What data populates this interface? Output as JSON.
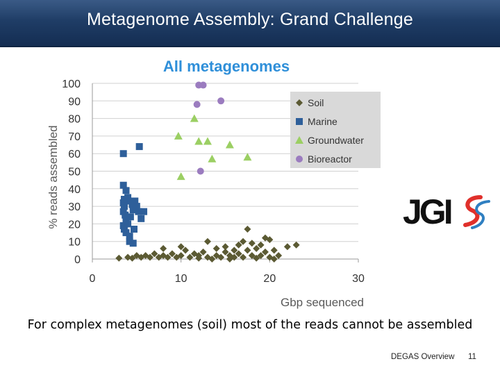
{
  "header": {
    "title": "Metagenome Assembly: Grand Challenge"
  },
  "caption": "For complex metagenomes (soil) most of the reads cannot be assembled",
  "footer": {
    "text": "DEGAS Overview",
    "page": "11"
  },
  "logo": {
    "text": "JGI"
  },
  "colors": {
    "header_bg": "#1f3d66",
    "title_blue": "#2f8fd9",
    "soil": "#5b5a33",
    "marine": "#2e5f9a",
    "groundwater": "#9bcf63",
    "bioreactor": "#9b7cbf",
    "legend_bg": "#d9d9d9",
    "logo_red": "#e0302b",
    "logo_blue": "#2f7fc1"
  },
  "chart_data": {
    "type": "scatter",
    "title": "All metagenomes",
    "xlabel": "Gbp sequenced",
    "ylabel": "% reads assembled",
    "xlim": [
      0,
      30
    ],
    "ylim": [
      0,
      100
    ],
    "xticks": [
      "0",
      "10",
      "20",
      "30"
    ],
    "yticks": [
      "0",
      "10",
      "20",
      "30",
      "40",
      "50",
      "60",
      "70",
      "80",
      "90",
      "100"
    ],
    "grid": "horizontal",
    "legend_position": "top-right",
    "series": [
      {
        "name": "Soil",
        "marker": "diamond",
        "color": "#5b5a33",
        "points": [
          [
            3,
            0.5
          ],
          [
            4,
            1
          ],
          [
            4.5,
            0.5
          ],
          [
            5,
            2
          ],
          [
            5.5,
            1
          ],
          [
            6,
            2
          ],
          [
            6.5,
            1
          ],
          [
            7,
            3
          ],
          [
            7.5,
            1
          ],
          [
            8,
            2
          ],
          [
            8,
            6
          ],
          [
            8.5,
            1
          ],
          [
            9,
            3
          ],
          [
            9.5,
            1
          ],
          [
            10,
            7
          ],
          [
            10,
            2
          ],
          [
            10.5,
            5
          ],
          [
            11,
            1
          ],
          [
            11.5,
            3
          ],
          [
            12,
            0.5
          ],
          [
            12,
            2
          ],
          [
            12.5,
            4
          ],
          [
            13,
            10
          ],
          [
            13,
            1
          ],
          [
            13.5,
            0
          ],
          [
            14,
            2
          ],
          [
            14,
            6
          ],
          [
            14.5,
            1
          ],
          [
            15,
            4
          ],
          [
            15,
            7
          ],
          [
            15.5,
            0
          ],
          [
            15.5,
            2
          ],
          [
            16,
            1
          ],
          [
            16,
            5
          ],
          [
            16.5,
            3
          ],
          [
            16.5,
            8
          ],
          [
            17,
            1
          ],
          [
            17,
            10
          ],
          [
            17.5,
            17
          ],
          [
            17.5,
            5
          ],
          [
            18,
            2
          ],
          [
            18,
            9
          ],
          [
            18.5,
            0.5
          ],
          [
            18.5,
            6
          ],
          [
            19,
            2
          ],
          [
            19,
            8
          ],
          [
            19.5,
            12
          ],
          [
            19.5,
            4
          ],
          [
            20,
            11
          ],
          [
            20,
            1
          ],
          [
            20.5,
            0
          ],
          [
            20.5,
            5
          ],
          [
            21,
            2
          ],
          [
            22,
            7
          ],
          [
            23,
            8
          ]
        ]
      },
      {
        "name": "Marine",
        "marker": "square",
        "color": "#2e5f9a",
        "points": [
          [
            3.5,
            60
          ],
          [
            5.3,
            64
          ],
          [
            3.5,
            42
          ],
          [
            3.8,
            39
          ],
          [
            3.5,
            32
          ],
          [
            3.6,
            30
          ],
          [
            4,
            35
          ],
          [
            4.2,
            33
          ],
          [
            4.5,
            31
          ],
          [
            4.8,
            33
          ],
          [
            3.5,
            27
          ],
          [
            3.7,
            25
          ],
          [
            3.8,
            22
          ],
          [
            3.5,
            19
          ],
          [
            3.6,
            17
          ],
          [
            3.8,
            15
          ],
          [
            4,
            20
          ],
          [
            4.3,
            24
          ],
          [
            4.6,
            28
          ],
          [
            5,
            30
          ],
          [
            5.2,
            27
          ],
          [
            5.5,
            23
          ],
          [
            5.8,
            27
          ],
          [
            4.2,
            13
          ],
          [
            4.2,
            10
          ],
          [
            4.6,
            9
          ],
          [
            4.7,
            17
          ],
          [
            3.6,
            34
          ]
        ]
      },
      {
        "name": "Groundwater",
        "marker": "triangle",
        "color": "#9bcf63",
        "points": [
          [
            9.7,
            70
          ],
          [
            10,
            47
          ],
          [
            11.5,
            80
          ],
          [
            12,
            67
          ],
          [
            13,
            67
          ],
          [
            13.5,
            57
          ],
          [
            15.5,
            65
          ],
          [
            17.5,
            58
          ]
        ]
      },
      {
        "name": "Bioreactor",
        "marker": "circle",
        "color": "#9b7cbf",
        "points": [
          [
            12,
            99
          ],
          [
            12.5,
            99
          ],
          [
            11.8,
            88
          ],
          [
            14.5,
            90
          ],
          [
            12.2,
            50
          ]
        ]
      }
    ]
  }
}
